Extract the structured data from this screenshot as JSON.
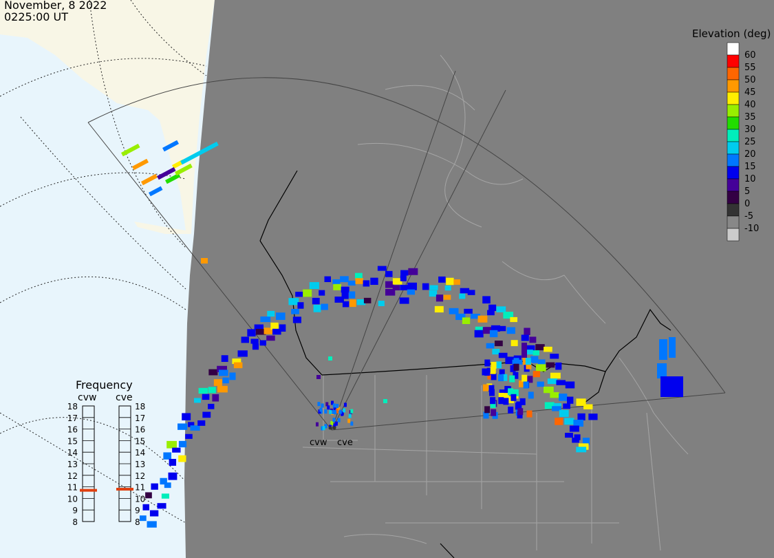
{
  "header": {
    "date": "November, 8 2022",
    "time": "0225:00 UT"
  },
  "legend": {
    "title": "Elevation (deg)",
    "entries": [
      {
        "label": "60",
        "color": "#ff0000"
      },
      {
        "label": "55",
        "color": "#ff6600"
      },
      {
        "label": "50",
        "color": "#ff9900"
      },
      {
        "label": "45",
        "color": "#ffee00"
      },
      {
        "label": "40",
        "color": "#99ee00"
      },
      {
        "label": "35",
        "color": "#22dd00"
      },
      {
        "label": "30",
        "color": "#00eebb"
      },
      {
        "label": "25",
        "color": "#00ccee"
      },
      {
        "label": "20",
        "color": "#0077ff"
      },
      {
        "label": "15",
        "color": "#0000ee"
      },
      {
        "label": "10",
        "color": "#440099"
      },
      {
        "label": "5",
        "color": "#330044"
      },
      {
        "label": "0",
        "color": "#333333"
      },
      {
        "label": "-5",
        "color": "#888888"
      },
      {
        "label": "-10",
        "color": "#cccccc"
      }
    ],
    "top_color": "#ffffff"
  },
  "radars": [
    {
      "id": "cvw",
      "label": "cvw"
    },
    {
      "id": "cve",
      "label": "cve"
    }
  ],
  "frequency": {
    "title": "Frequency",
    "left_label": "cvw",
    "right_label": "cve",
    "ticks": [
      "18",
      "17",
      "16",
      "15",
      "14",
      "13",
      "12",
      "11",
      "10",
      "9",
      "8"
    ],
    "cvw_value": 10.7,
    "cve_value": 10.8,
    "marker_color": "#e04010"
  },
  "colors": {
    "land": "#808080",
    "ocean": "#e8f5fc",
    "alaska_land": "#f8f6e6",
    "fov": "#444444",
    "border": "#000000",
    "state_lines": "#a6a6a6"
  }
}
